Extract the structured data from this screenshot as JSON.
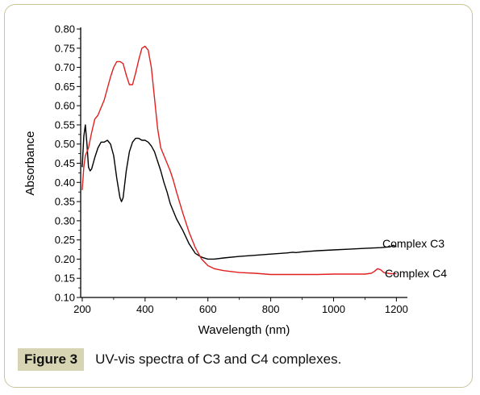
{
  "chart_data": {
    "type": "line",
    "xlabel": "Wavelength (nm)",
    "ylabel": "Absorbance",
    "xlim": [
      195,
      1235
    ],
    "ylim": [
      0.1,
      0.8
    ],
    "x_ticks": [
      200,
      400,
      600,
      800,
      1000,
      1200
    ],
    "y_ticks": [
      "0.10",
      "0.15",
      "0.20",
      "0.25",
      "0.30",
      "0.35",
      "0.40",
      "0.45",
      "0.50",
      "0.55",
      "0.60",
      "0.65",
      "0.70",
      "0.75",
      "0.80"
    ],
    "grid": false,
    "series": [
      {
        "name": "Complex C3",
        "color": "#000000",
        "x": [
          200,
          205,
          210,
          215,
          220,
          225,
          230,
          240,
          250,
          260,
          270,
          280,
          290,
          300,
          310,
          320,
          325,
          330,
          340,
          350,
          360,
          370,
          380,
          390,
          400,
          410,
          420,
          430,
          440,
          450,
          460,
          470,
          480,
          490,
          500,
          520,
          540,
          560,
          580,
          600,
          620,
          650,
          700,
          750,
          800,
          850,
          870,
          880,
          900,
          950,
          1000,
          1050,
          1100,
          1150,
          1180,
          1190,
          1200
        ],
        "y": [
          0.44,
          0.52,
          0.55,
          0.5,
          0.44,
          0.43,
          0.435,
          0.465,
          0.49,
          0.505,
          0.505,
          0.51,
          0.5,
          0.47,
          0.41,
          0.36,
          0.35,
          0.36,
          0.43,
          0.48,
          0.505,
          0.515,
          0.515,
          0.51,
          0.51,
          0.505,
          0.495,
          0.48,
          0.455,
          0.43,
          0.4,
          0.375,
          0.345,
          0.325,
          0.305,
          0.275,
          0.24,
          0.215,
          0.205,
          0.2,
          0.2,
          0.203,
          0.207,
          0.21,
          0.213,
          0.216,
          0.218,
          0.217,
          0.219,
          0.222,
          0.224,
          0.226,
          0.228,
          0.23,
          0.232,
          0.236,
          0.232
        ]
      },
      {
        "name": "Complex C4",
        "color": "#e02020",
        "x": [
          200,
          205,
          210,
          215,
          220,
          230,
          240,
          250,
          260,
          270,
          280,
          290,
          300,
          310,
          320,
          330,
          340,
          350,
          360,
          370,
          380,
          390,
          400,
          410,
          420,
          430,
          440,
          450,
          460,
          470,
          480,
          490,
          500,
          520,
          540,
          560,
          580,
          600,
          620,
          650,
          700,
          750,
          800,
          850,
          900,
          950,
          1000,
          1050,
          1100,
          1120,
          1130,
          1140,
          1150,
          1160,
          1180,
          1200
        ],
        "y": [
          0.38,
          0.44,
          0.47,
          0.48,
          0.49,
          0.53,
          0.565,
          0.575,
          0.595,
          0.615,
          0.645,
          0.675,
          0.7,
          0.715,
          0.715,
          0.71,
          0.68,
          0.655,
          0.655,
          0.685,
          0.72,
          0.75,
          0.755,
          0.745,
          0.7,
          0.62,
          0.54,
          0.49,
          0.47,
          0.45,
          0.43,
          0.405,
          0.375,
          0.32,
          0.27,
          0.23,
          0.2,
          0.183,
          0.175,
          0.17,
          0.165,
          0.163,
          0.16,
          0.16,
          0.16,
          0.16,
          0.161,
          0.161,
          0.161,
          0.163,
          0.168,
          0.175,
          0.172,
          0.165,
          0.162,
          0.162
        ]
      }
    ]
  },
  "caption": {
    "label": "Figure 3",
    "text": "UV-vis spectra of C3 and C4 complexes."
  }
}
